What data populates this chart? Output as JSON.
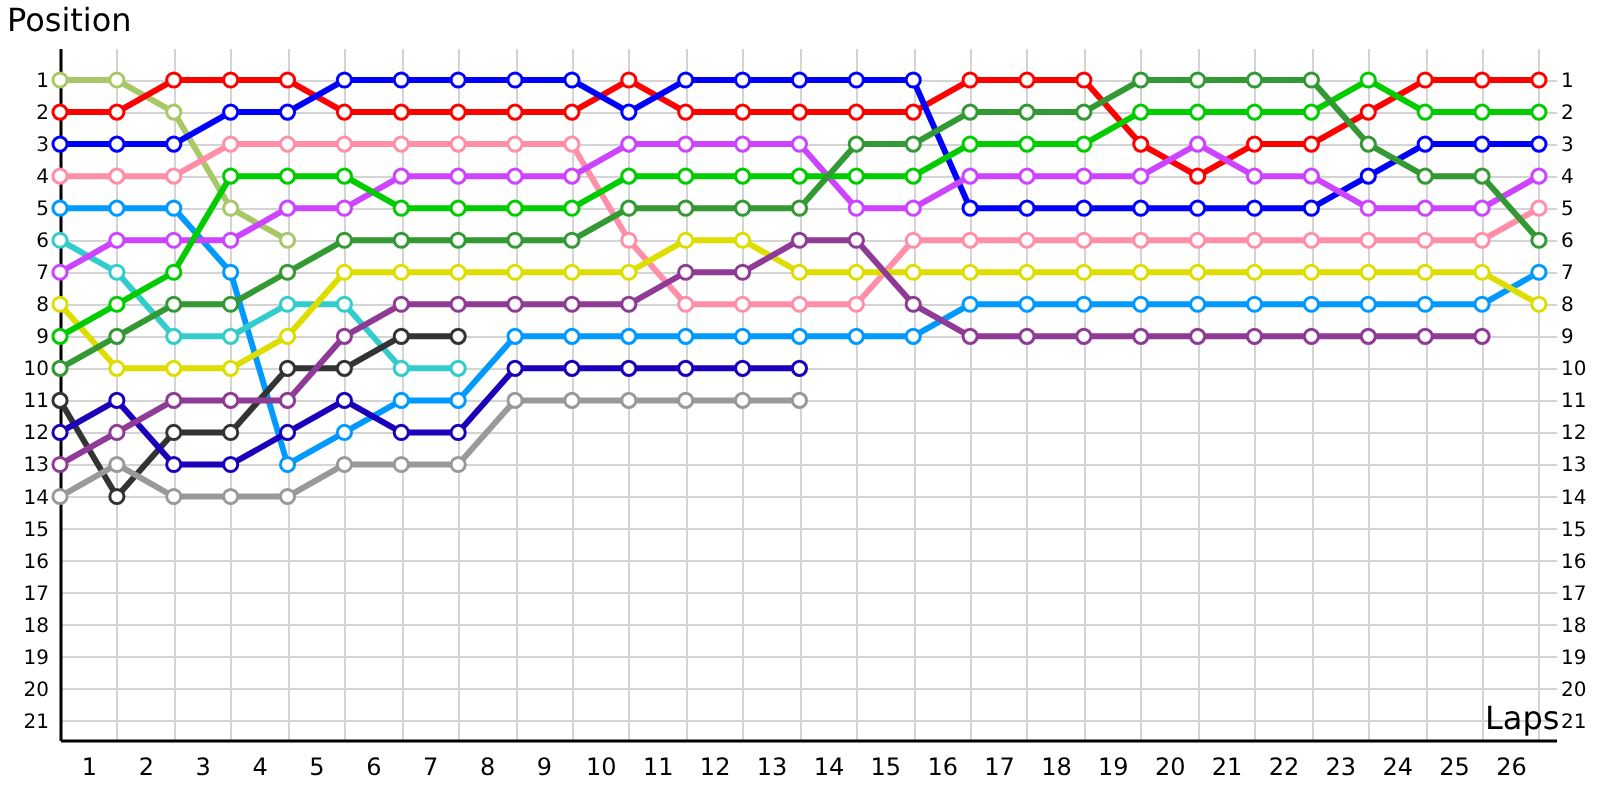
{
  "chart_data": {
    "type": "line",
    "xlabel": "Laps",
    "ylabel": "Position",
    "grid": true,
    "marker": "circle",
    "line_style": "solid",
    "x": [
      0,
      1,
      2,
      3,
      4,
      5,
      6,
      7,
      8,
      9,
      10,
      11,
      12,
      13,
      14,
      15,
      16,
      17,
      18,
      19,
      20,
      21,
      22,
      23,
      24,
      25,
      26
    ],
    "xlim": [
      0,
      26.3
    ],
    "xticks": [
      {
        "value": 0,
        "label": null
      },
      {
        "value": 0.5,
        "label": "1"
      },
      {
        "value": 1,
        "label": null
      },
      {
        "value": 1.5,
        "label": "2"
      },
      {
        "value": 2,
        "label": null
      },
      {
        "value": 2.5,
        "label": "3"
      },
      {
        "value": 3,
        "label": null
      },
      {
        "value": 3.5,
        "label": "4"
      },
      {
        "value": 4,
        "label": null
      },
      {
        "value": 4.5,
        "label": "5"
      },
      {
        "value": 5,
        "label": null
      },
      {
        "value": 5.5,
        "label": "6"
      },
      {
        "value": 6,
        "label": null
      },
      {
        "value": 6.5,
        "label": "7"
      },
      {
        "value": 7,
        "label": null
      },
      {
        "value": 7.5,
        "label": "8"
      },
      {
        "value": 8,
        "label": null
      },
      {
        "value": 8.5,
        "label": "9"
      },
      {
        "value": 9,
        "label": null
      },
      {
        "value": 9.5,
        "label": "10"
      },
      {
        "value": 10,
        "label": null
      },
      {
        "value": 10.5,
        "label": "11"
      },
      {
        "value": 11,
        "label": null
      },
      {
        "value": 11.5,
        "label": "12"
      },
      {
        "value": 12,
        "label": null
      },
      {
        "value": 12.5,
        "label": "13"
      },
      {
        "value": 13,
        "label": null
      },
      {
        "value": 13.5,
        "label": "14"
      },
      {
        "value": 14,
        "label": null
      },
      {
        "value": 14.5,
        "label": "15"
      },
      {
        "value": 15,
        "label": null
      },
      {
        "value": 15.5,
        "label": "16"
      },
      {
        "value": 16,
        "label": null
      },
      {
        "value": 16.5,
        "label": "17"
      },
      {
        "value": 17,
        "label": null
      },
      {
        "value": 17.5,
        "label": "18"
      },
      {
        "value": 18,
        "label": null
      },
      {
        "value": 18.5,
        "label": "19"
      },
      {
        "value": 19,
        "label": null
      },
      {
        "value": 19.5,
        "label": "20"
      },
      {
        "value": 20,
        "label": null
      },
      {
        "value": 20.5,
        "label": "21"
      },
      {
        "value": 21,
        "label": null
      },
      {
        "value": 21.5,
        "label": "22"
      },
      {
        "value": 22,
        "label": null
      },
      {
        "value": 22.5,
        "label": "23"
      },
      {
        "value": 23,
        "label": null
      },
      {
        "value": 23.5,
        "label": "24"
      },
      {
        "value": 24,
        "label": null
      },
      {
        "value": 24.5,
        "label": "25"
      },
      {
        "value": 25,
        "label": null
      },
      {
        "value": 25.5,
        "label": "26"
      },
      {
        "value": 26,
        "label": null
      }
    ],
    "ylim": [
      21.6,
      0
    ],
    "yticks": [
      1,
      2,
      3,
      4,
      5,
      6,
      7,
      8,
      9,
      10,
      11,
      12,
      13,
      14,
      15,
      16,
      17,
      18,
      19,
      20,
      21
    ],
    "y2lim": [
      21.6,
      0
    ],
    "y2ticks": [
      1,
      2,
      3,
      4,
      5,
      6,
      7,
      8,
      9,
      10,
      11,
      12,
      13,
      14,
      15,
      16,
      17,
      18,
      19,
      20,
      21
    ],
    "series": [
      {
        "color": "#a8c868",
        "values": [
          1,
          1,
          2,
          5,
          6,
          null,
          null,
          null,
          null,
          null,
          null,
          null,
          null,
          null,
          null,
          null,
          null,
          null,
          null,
          null,
          null,
          null,
          null,
          null,
          null,
          null,
          null
        ]
      },
      {
        "color": "#ff0000",
        "values": [
          2,
          2,
          1,
          1,
          1,
          2,
          2,
          2,
          2,
          2,
          1,
          2,
          2,
          2,
          2,
          2,
          1,
          1,
          1,
          3,
          4,
          3,
          3,
          2,
          1,
          1,
          1
        ]
      },
      {
        "color": "#0000ff",
        "values": [
          3,
          3,
          3,
          2,
          2,
          1,
          1,
          1,
          1,
          1,
          2,
          1,
          1,
          1,
          1,
          1,
          5,
          5,
          5,
          5,
          5,
          5,
          5,
          4,
          3,
          3,
          3
        ]
      },
      {
        "color": "#ff8fa8",
        "values": [
          4,
          4,
          4,
          3,
          3,
          3,
          3,
          3,
          3,
          3,
          6,
          8,
          8,
          8,
          8,
          6,
          6,
          6,
          6,
          6,
          6,
          6,
          6,
          6,
          6,
          6,
          5
        ]
      },
      {
        "color": "#0099ff",
        "values": [
          5,
          5,
          5,
          7,
          13,
          12,
          11,
          11,
          9,
          9,
          9,
          9,
          9,
          9,
          9,
          9,
          8,
          8,
          8,
          8,
          8,
          8,
          8,
          8,
          8,
          8,
          7
        ]
      },
      {
        "color": "#33cccc",
        "values": [
          6,
          7,
          9,
          9,
          8,
          8,
          10,
          10,
          null,
          null,
          null,
          null,
          null,
          null,
          null,
          null,
          null,
          null,
          null,
          null,
          null,
          null,
          null,
          null,
          null,
          null,
          null
        ]
      },
      {
        "color": "#cc44ff",
        "values": [
          7,
          6,
          6,
          6,
          5,
          5,
          4,
          4,
          4,
          4,
          3,
          3,
          3,
          3,
          5,
          5,
          4,
          4,
          4,
          4,
          3,
          4,
          4,
          5,
          5,
          5,
          4
        ]
      },
      {
        "color": "#dddd00",
        "values": [
          8,
          10,
          10,
          10,
          9,
          7,
          7,
          7,
          7,
          7,
          7,
          6,
          6,
          7,
          7,
          7,
          7,
          7,
          7,
          7,
          7,
          7,
          7,
          7,
          7,
          7,
          8
        ]
      },
      {
        "color": "#00cc00",
        "values": [
          9,
          8,
          7,
          4,
          4,
          4,
          5,
          5,
          5,
          5,
          4,
          4,
          4,
          4,
          4,
          4,
          3,
          3,
          3,
          2,
          2,
          2,
          2,
          1,
          2,
          2,
          2
        ]
      },
      {
        "color": "#339933",
        "values": [
          10,
          9,
          8,
          8,
          7,
          6,
          6,
          6,
          6,
          6,
          5,
          5,
          5,
          5,
          3,
          3,
          2,
          2,
          2,
          1,
          1,
          1,
          1,
          3,
          4,
          4,
          6
        ]
      },
      {
        "color": "#333333",
        "values": [
          11,
          14,
          12,
          12,
          10,
          10,
          9,
          9,
          null,
          null,
          null,
          null,
          null,
          null,
          null,
          null,
          null,
          null,
          null,
          null,
          null,
          null,
          null,
          null,
          null,
          null,
          null
        ]
      },
      {
        "color": "#1a00bb",
        "values": [
          12,
          11,
          13,
          13,
          12,
          11,
          12,
          12,
          10,
          10,
          10,
          10,
          10,
          10,
          null,
          null,
          null,
          null,
          null,
          null,
          null,
          null,
          null,
          null,
          null,
          null,
          null
        ]
      },
      {
        "color": "#8e3a96",
        "values": [
          13,
          12,
          11,
          11,
          11,
          9,
          8,
          8,
          8,
          8,
          8,
          7,
          7,
          6,
          6,
          8,
          9,
          9,
          9,
          9,
          9,
          9,
          9,
          9,
          9,
          9,
          null
        ]
      },
      {
        "color": "#999999",
        "values": [
          14,
          13,
          14,
          14,
          14,
          13,
          13,
          13,
          11,
          11,
          11,
          11,
          11,
          11,
          null,
          null,
          null,
          null,
          null,
          null,
          null,
          null,
          null,
          null,
          null,
          null,
          null
        ]
      }
    ]
  }
}
